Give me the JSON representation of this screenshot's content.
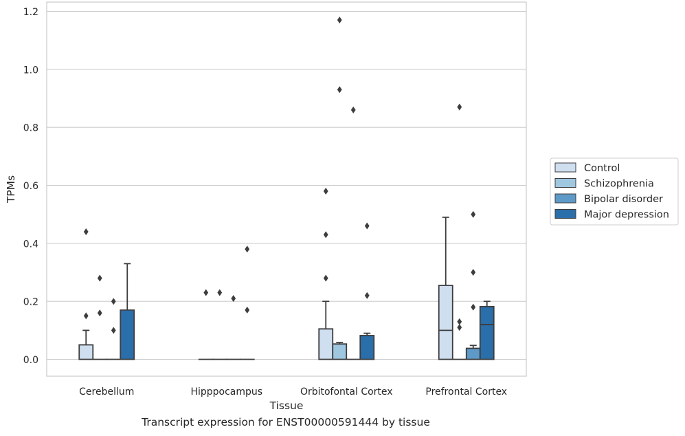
{
  "chart_data": {
    "type": "box",
    "caption": "Transcript expression for ENST00000591444 by tissue",
    "xlabel": "Tissue",
    "ylabel": "TPMs",
    "ylim": [
      -0.058,
      1.232
    ],
    "yticks": [
      "0.0",
      "0.2",
      "0.4",
      "0.6",
      "0.8",
      "1.0",
      "1.2"
    ],
    "ytick_values": [
      0,
      0.2,
      0.4,
      0.6,
      0.8,
      1.0,
      1.2
    ],
    "grid": "horizontal",
    "legend_position": "right",
    "categories": [
      "Cerebellum",
      "Hipppocampus",
      "Orbitofontal Cortex",
      "Prefrontal Cortex"
    ],
    "series": [
      {
        "name": "Control",
        "color": "#cfdff0",
        "boxes": [
          {
            "whisker_low": 0,
            "q1": 0,
            "median": 0,
            "q3": 0.05,
            "whisker_high": 0.1,
            "outliers": [
              0.15,
              0.44
            ]
          },
          {
            "whisker_low": 0,
            "q1": 0,
            "median": 0,
            "q3": 0,
            "whisker_high": 0,
            "outliers": [
              0.23
            ]
          },
          {
            "whisker_low": 0,
            "q1": 0,
            "median": 0,
            "q3": 0.105,
            "whisker_high": 0.2,
            "outliers": [
              0.28,
              0.43,
              0.58
            ]
          },
          {
            "whisker_low": 0,
            "q1": 0,
            "median": 0.1,
            "q3": 0.255,
            "whisker_high": 0.49,
            "outliers": []
          }
        ]
      },
      {
        "name": "Schizophrenia",
        "color": "#9fc7e0",
        "boxes": [
          {
            "whisker_low": 0,
            "q1": 0,
            "median": 0,
            "q3": 0,
            "whisker_high": 0,
            "outliers": [
              0.16,
              0.28
            ]
          },
          {
            "whisker_low": 0,
            "q1": 0,
            "median": 0,
            "q3": 0,
            "whisker_high": 0,
            "outliers": [
              0.23
            ]
          },
          {
            "whisker_low": 0,
            "q1": 0,
            "median": 0,
            "q3": 0.053,
            "whisker_high": 0.058,
            "outliers": [
              0.93,
              1.17
            ]
          },
          {
            "whisker_low": 0,
            "q1": 0,
            "median": 0,
            "q3": 0,
            "whisker_high": 0,
            "outliers": [
              0.11,
              0.13,
              0.87
            ]
          }
        ]
      },
      {
        "name": "Bipolar disorder",
        "color": "#5e9ac8",
        "boxes": [
          {
            "whisker_low": 0,
            "q1": 0,
            "median": 0,
            "q3": 0,
            "whisker_high": 0,
            "outliers": [
              0.1,
              0.2
            ]
          },
          {
            "whisker_low": 0,
            "q1": 0,
            "median": 0,
            "q3": 0,
            "whisker_high": 0,
            "outliers": [
              0.21
            ]
          },
          {
            "whisker_low": 0,
            "q1": 0,
            "median": 0,
            "q3": 0,
            "whisker_high": 0,
            "outliers": [
              0.86
            ]
          },
          {
            "whisker_low": 0,
            "q1": 0,
            "median": 0,
            "q3": 0.038,
            "whisker_high": 0.048,
            "outliers": [
              0.18,
              0.3,
              0.5
            ]
          }
        ]
      },
      {
        "name": "Major depression",
        "color": "#2a6eaa",
        "boxes": [
          {
            "whisker_low": 0,
            "q1": 0,
            "median": 0,
            "q3": 0.17,
            "whisker_high": 0.33,
            "outliers": []
          },
          {
            "whisker_low": 0,
            "q1": 0,
            "median": 0,
            "q3": 0,
            "whisker_high": 0,
            "outliers": [
              0.17,
              0.38
            ]
          },
          {
            "whisker_low": 0,
            "q1": 0,
            "median": 0,
            "q3": 0.082,
            "whisker_high": 0.09,
            "outliers": [
              0.22,
              0.46
            ]
          },
          {
            "whisker_low": 0,
            "q1": 0,
            "median": 0.12,
            "q3": 0.182,
            "whisker_high": 0.2,
            "outliers": []
          }
        ]
      }
    ]
  }
}
